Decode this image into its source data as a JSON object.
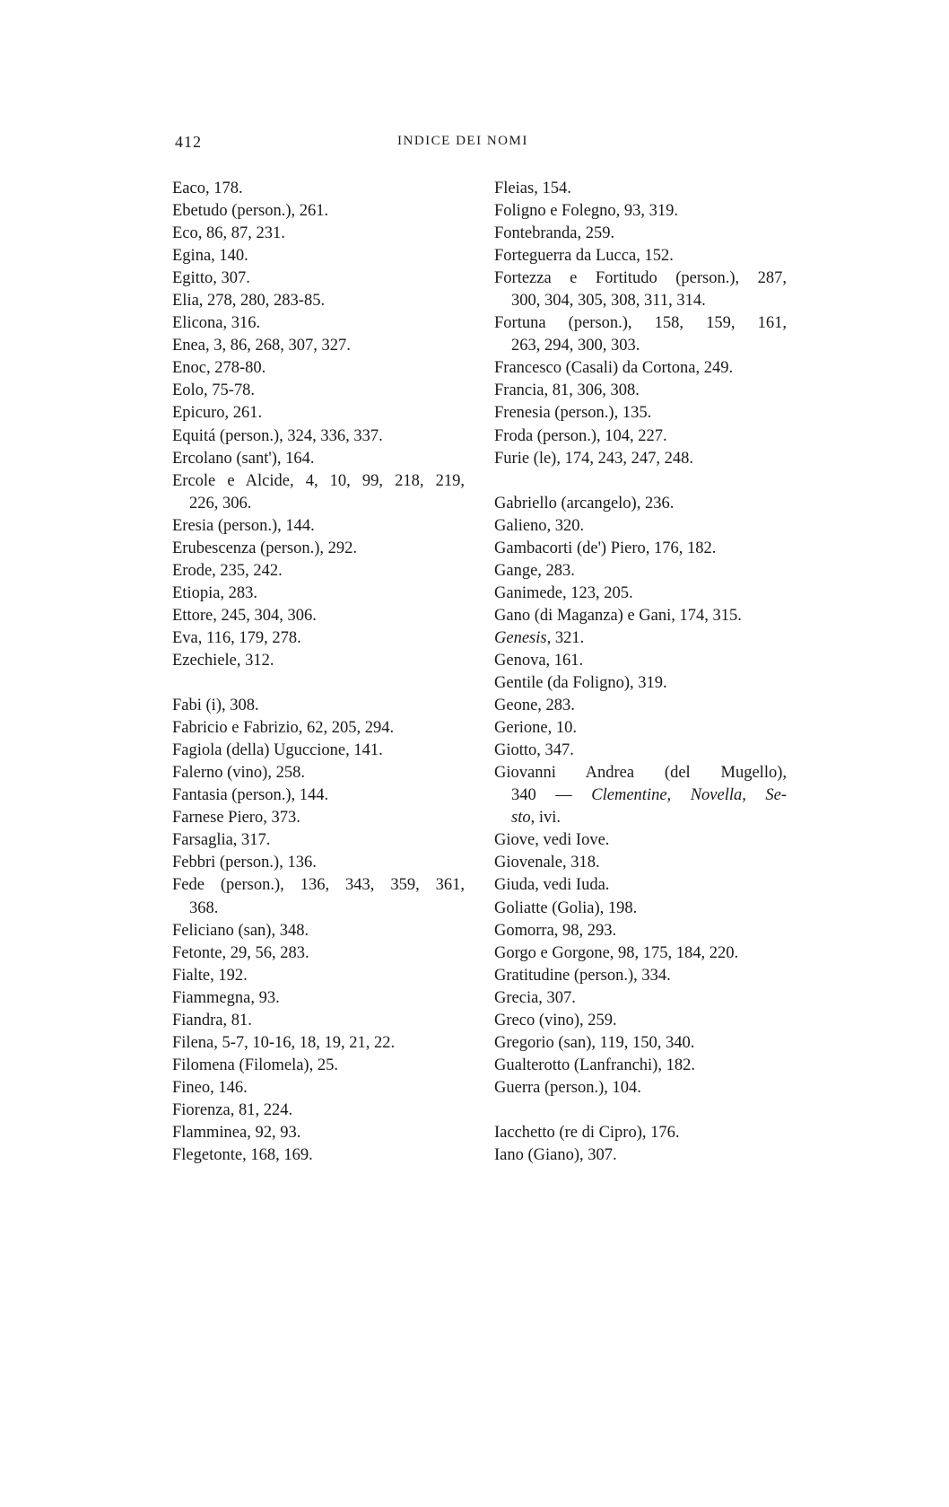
{
  "header": {
    "page_number": "412",
    "title": "INDICE DEI NOMI"
  },
  "columns": [
    [
      {
        "t": "Eaco, 178."
      },
      {
        "t": "Ebetudo (person.), 261."
      },
      {
        "t": "Eco, 86, 87, 231."
      },
      {
        "t": "Egina, 140."
      },
      {
        "t": "Egitto, 307."
      },
      {
        "t": "Elia, 278, 280, 283-85."
      },
      {
        "t": "Elicona, 316."
      },
      {
        "t": "Enea, 3, 86, 268, 307, 327."
      },
      {
        "t": "Enoc, 278-80."
      },
      {
        "t": "Eolo, 75-78."
      },
      {
        "t": "Epicuro, 261."
      },
      {
        "t": "Equitá (person.), 324, 336, 337."
      },
      {
        "t": "Ercolano (sant'), 164."
      },
      {
        "t": "Ercole e Alcide, 4, 10, 99, 218, 219,",
        "just": true
      },
      {
        "t": "226, 306.",
        "cont": true
      },
      {
        "t": "Eresia (person.), 144."
      },
      {
        "t": "Erubescenza (person.), 292."
      },
      {
        "t": "Erode, 235, 242."
      },
      {
        "t": "Etiopia, 283."
      },
      {
        "t": "Ettore, 245, 304, 306."
      },
      {
        "t": "Eva, 116, 179, 278."
      },
      {
        "t": "Ezechiele, 312."
      },
      {
        "blank": true
      },
      {
        "t": "Fabi (i), 308."
      },
      {
        "t": "Fabricio e Fabrizio, 62, 205, 294."
      },
      {
        "t": "Fagiola (della) Uguccione, 141."
      },
      {
        "t": "Falerno (vino), 258."
      },
      {
        "t": "Fantasia (person.), 144."
      },
      {
        "t": "Farnese Piero, 373."
      },
      {
        "t": "Farsaglia, 317."
      },
      {
        "t": "Febbri (person.), 136."
      },
      {
        "t": "Fede (person.), 136, 343, 359, 361,",
        "just": true
      },
      {
        "t": "368.",
        "cont": true
      },
      {
        "t": "Feliciano (san), 348."
      },
      {
        "t": "Fetonte, 29, 56, 283."
      },
      {
        "t": "Fialte, 192."
      },
      {
        "t": "Fiammegna, 93."
      },
      {
        "t": "Fiandra, 81."
      },
      {
        "t": "Filena, 5-7, 10-16, 18, 19, 21, 22."
      },
      {
        "t": "Filomena (Filomela), 25."
      },
      {
        "t": "Fineo, 146."
      },
      {
        "t": "Fiorenza, 81, 224."
      },
      {
        "t": "Flamminea, 92, 93."
      },
      {
        "t": "Flegetonte, 168, 169."
      }
    ],
    [
      {
        "t": "Fleias, 154."
      },
      {
        "t": "Foligno e Folegno, 93, 319."
      },
      {
        "t": "Fontebranda, 259."
      },
      {
        "t": "Forteguerra da Lucca, 152."
      },
      {
        "t": "Fortezza e Fortitudo (person.), 287,",
        "just": true
      },
      {
        "t": "300, 304, 305, 308, 311, 314.",
        "cont": true
      },
      {
        "t": "Fortuna (person.), 158, 159, 161,",
        "just": true
      },
      {
        "t": "263, 294, 300, 303.",
        "cont": true
      },
      {
        "t": "Francesco (Casali) da Cortona, 249."
      },
      {
        "t": "Francia, 81, 306, 308."
      },
      {
        "t": "Frenesia (person.), 135."
      },
      {
        "t": "Froda (person.), 104, 227."
      },
      {
        "t": "Furie (le), 174, 243, 247, 248."
      },
      {
        "blank": true
      },
      {
        "t": "Gabriello (arcangelo), 236."
      },
      {
        "t": "Galieno, 320."
      },
      {
        "t": "Gambacorti (de') Piero, 176, 182."
      },
      {
        "t": "Gange, 283."
      },
      {
        "t": "Ganimede, 123, 205."
      },
      {
        "t": "Gano (di Maganza) e Gani, 174, 315."
      },
      {
        "parts": [
          {
            "t": "Genesis",
            "i": true
          },
          {
            "t": ", 321."
          }
        ]
      },
      {
        "t": "Genova, 161."
      },
      {
        "t": "Gentile (da Foligno), 319."
      },
      {
        "t": "Geone, 283."
      },
      {
        "t": "Gerione, 10."
      },
      {
        "t": "Giotto, 347."
      },
      {
        "t": "Giovanni Andrea (del Mugello),",
        "just": true
      },
      {
        "cont": true,
        "just": true,
        "parts": [
          {
            "t": "340 — "
          },
          {
            "t": "Clementine, Novella, Se-",
            "i": true
          }
        ]
      },
      {
        "cont": true,
        "parts": [
          {
            "t": "sto",
            "i": true
          },
          {
            "t": ", ivi."
          }
        ]
      },
      {
        "t": "Giove, vedi Iove."
      },
      {
        "t": "Giovenale, 318."
      },
      {
        "t": "Giuda, vedi Iuda."
      },
      {
        "t": "Goliatte (Golia), 198."
      },
      {
        "t": "Gomorra, 98, 293."
      },
      {
        "t": "Gorgo e Gorgone, 98, 175, 184, 220."
      },
      {
        "t": "Gratitudine (person.), 334."
      },
      {
        "t": "Grecia, 307."
      },
      {
        "t": "Greco (vino), 259."
      },
      {
        "t": "Gregorio (san), 119, 150, 340."
      },
      {
        "t": "Gualterotto (Lanfranchi), 182."
      },
      {
        "t": "Guerra (person.), 104."
      },
      {
        "blank": true
      },
      {
        "t": "Iacchetto (re di Cipro), 176."
      },
      {
        "t": "Iano (Giano), 307."
      }
    ]
  ]
}
